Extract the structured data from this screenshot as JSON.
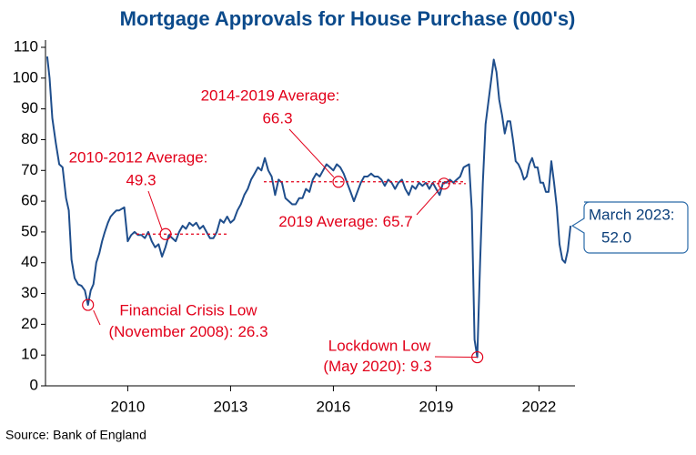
{
  "chart_data": {
    "type": "line",
    "title": "Mortgage Approvals for House Purchase (000's)",
    "source": "Source: Bank of England",
    "color": "#1f4e8c",
    "annotation_color": "#e2001a",
    "xlim": [
      2007.6,
      2023.05
    ],
    "xticks": [
      2010,
      2013,
      2016,
      2019,
      2022
    ],
    "ylim": [
      0,
      110
    ],
    "yticks": [
      0,
      10,
      20,
      30,
      40,
      50,
      60,
      70,
      80,
      90,
      100,
      110
    ],
    "x": [
      2007.65,
      2007.72,
      2007.8,
      2007.9,
      2008.0,
      2008.1,
      2008.2,
      2008.28,
      2008.36,
      2008.45,
      2008.55,
      2008.65,
      2008.75,
      2008.84,
      2008.92,
      2009.0,
      2009.08,
      2009.17,
      2009.25,
      2009.33,
      2009.42,
      2009.5,
      2009.58,
      2009.67,
      2009.75,
      2009.9,
      2010.0,
      2010.1,
      2010.2,
      2010.3,
      2010.4,
      2010.5,
      2010.6,
      2010.7,
      2010.8,
      2010.9,
      2011.0,
      2011.1,
      2011.2,
      2011.3,
      2011.4,
      2011.5,
      2011.6,
      2011.7,
      2011.8,
      2011.9,
      2012.0,
      2012.1,
      2012.2,
      2012.3,
      2012.4,
      2012.5,
      2012.6,
      2012.7,
      2012.8,
      2012.9,
      2013.0,
      2013.1,
      2013.2,
      2013.3,
      2013.4,
      2013.5,
      2013.6,
      2013.7,
      2013.8,
      2013.9,
      2014.0,
      2014.1,
      2014.2,
      2014.3,
      2014.4,
      2014.5,
      2014.6,
      2014.7,
      2014.8,
      2014.9,
      2015.0,
      2015.1,
      2015.2,
      2015.3,
      2015.4,
      2015.5,
      2015.6,
      2015.7,
      2015.8,
      2015.9,
      2016.0,
      2016.1,
      2016.2,
      2016.3,
      2016.4,
      2016.5,
      2016.6,
      2016.7,
      2016.8,
      2016.9,
      2017.0,
      2017.1,
      2017.2,
      2017.3,
      2017.4,
      2017.5,
      2017.6,
      2017.7,
      2017.8,
      2017.9,
      2018.0,
      2018.1,
      2018.2,
      2018.3,
      2018.4,
      2018.5,
      2018.6,
      2018.7,
      2018.8,
      2018.9,
      2019.0,
      2019.1,
      2019.2,
      2019.3,
      2019.4,
      2019.5,
      2019.6,
      2019.7,
      2019.8,
      2019.96,
      2020.04,
      2020.12,
      2020.2,
      2020.28,
      2020.36,
      2020.44,
      2020.52,
      2020.6,
      2020.68,
      2020.76,
      2020.84,
      2020.92,
      2021.0,
      2021.08,
      2021.16,
      2021.24,
      2021.32,
      2021.4,
      2021.48,
      2021.56,
      2021.64,
      2021.72,
      2021.8,
      2021.88,
      2021.96,
      2022.04,
      2022.12,
      2022.2,
      2022.28,
      2022.36,
      2022.44,
      2022.52,
      2022.6,
      2022.68,
      2022.76,
      2022.84,
      2022.92
    ],
    "values": [
      107,
      100,
      87,
      79,
      72,
      71,
      61,
      57,
      41,
      35,
      33,
      32.5,
      31,
      26.3,
      31,
      33,
      40,
      43,
      47,
      50,
      53,
      55,
      56,
      57,
      57,
      58,
      47,
      49,
      50,
      49,
      49,
      48,
      50,
      47,
      45,
      46,
      42,
      45,
      49,
      48,
      47,
      50,
      52,
      51,
      53,
      52,
      53,
      51,
      52,
      50,
      48,
      48,
      50,
      54,
      53,
      55,
      53,
      54,
      57,
      59,
      62,
      64,
      67,
      69,
      71,
      70,
      74,
      70,
      68,
      62,
      67,
      66,
      61,
      60,
      59,
      59,
      61,
      61,
      64,
      63,
      67,
      69,
      68,
      70,
      72,
      71,
      70,
      72,
      71,
      69,
      66,
      63,
      60,
      63,
      66,
      68,
      68,
      69,
      68,
      68,
      67,
      65,
      67,
      66,
      64,
      66,
      67,
      64,
      62,
      65,
      64,
      66,
      65,
      66,
      64,
      66,
      64,
      62,
      66,
      66,
      67,
      66,
      67,
      68,
      71,
      72,
      57,
      15,
      9.3,
      40,
      66,
      85,
      92,
      99,
      106,
      102,
      93,
      88,
      82,
      86,
      86,
      80,
      73,
      72,
      70,
      67,
      68,
      72,
      74,
      71,
      71,
      66,
      66,
      63,
      63,
      73,
      66,
      58,
      46,
      41,
      40,
      44,
      52
    ],
    "averages": [
      {
        "label": "2010-2012 Average:",
        "value": 49.3
      },
      {
        "label": "2014-2019 Average:",
        "value": 66.3
      },
      {
        "label": "2019 Average:",
        "value": 65.7
      }
    ],
    "callouts": [
      {
        "label": [
          "Financial Crisis Low",
          "(November 2008):"
        ],
        "value": 26.3
      },
      {
        "label": [
          "Lockdown Low",
          "(May 2020):"
        ],
        "value": 9.3
      },
      {
        "label": [
          "March 2023:"
        ],
        "value": 52,
        "value_label": "52.0"
      }
    ]
  }
}
